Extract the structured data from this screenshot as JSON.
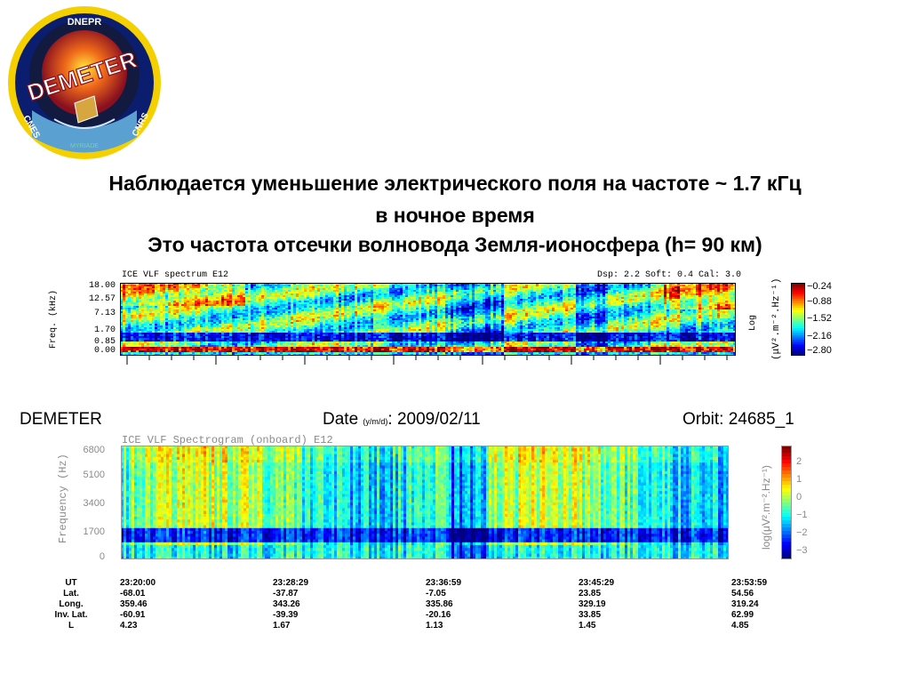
{
  "logo": {
    "top_text": "DNEPR",
    "main_text": "DEMETER",
    "left_text": "CNES",
    "right_text": "CNRS",
    "bottom_text": "MYRIADE"
  },
  "heading": {
    "line1": "Наблюдается уменьшение электрического поля на частоте ~ 1.7 кГц",
    "line2": "в ночное время",
    "line3": "Это частота отсечки волновода Земля-ионосфера (h= 90 км)"
  },
  "chart_data": [
    {
      "type": "heatmap",
      "title_left": "ICE VLF spectrum   E12",
      "title_right": "Dsp: 2.2  Soft: 0.4  Cal: 3.0",
      "ylabel": "Freq. (kHz)",
      "y_ticks": [
        "18.00",
        "12.57",
        "7.13",
        "1.70",
        "0.85",
        "0.00"
      ],
      "colorbar_label": "Log (μV².m⁻².Hz⁻¹)",
      "colorbar_ticks": [
        "−0.24",
        "−0.88",
        "−1.52",
        "−2.16",
        "−2.80"
      ]
    },
    {
      "type": "heatmap",
      "title": "ICE VLF Spectrogram (onboard) E12",
      "ylabel": "Frequency (Hz)",
      "y_ticks": [
        "6800",
        "5100",
        "3400",
        "1700",
        "0"
      ],
      "colorbar_label": "log(μV².m⁻².Hz⁻¹)",
      "colorbar_ticks": [
        "2",
        "1",
        "0",
        "−1",
        "−2",
        "−3"
      ]
    }
  ],
  "info": {
    "mission": "DEMETER",
    "date_label": "Date",
    "date_unit": "(y/m/d)",
    "date_value": ": 2009/02/11",
    "orbit": "Orbit: 24685_1"
  },
  "table": {
    "row_labels": [
      "UT",
      "Lat.",
      "Long.",
      "Inv. Lat.",
      "L"
    ],
    "columns": [
      [
        "23:20:00",
        "-68.01",
        "359.46",
        "-60.91",
        "4.23"
      ],
      [
        "23:28:29",
        "-37.87",
        "343.26",
        "-39.39",
        "1.67"
      ],
      [
        "23:36:59",
        "-7.05",
        "335.86",
        "-20.16",
        "1.13"
      ],
      [
        "23:45:29",
        "23.85",
        "329.19",
        "33.85",
        "1.45"
      ],
      [
        "23:53:59",
        "54.56",
        "319.24",
        "62.99",
        "4.85"
      ]
    ]
  }
}
